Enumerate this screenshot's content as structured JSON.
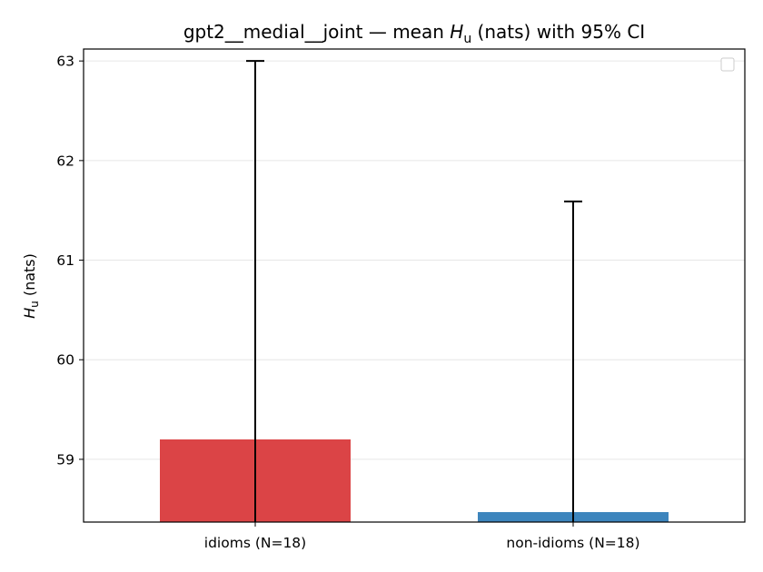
{
  "chart_data": {
    "type": "bar",
    "title_prefix": "gpt2__medial__joint — mean ",
    "title_symbol": "H",
    "title_subscript": "u",
    "title_suffix": " (nats) with 95% CI",
    "ylabel_symbol": "H",
    "ylabel_subscript": "u",
    "ylabel_suffix": " (nats)",
    "categories": [
      "idioms (N=18)",
      "non-idioms (N=18)"
    ],
    "values": [
      59.2,
      58.47
    ],
    "ci_upper": [
      63.0,
      61.59
    ],
    "bar_colors": [
      "#db4446",
      "#3d85bd"
    ],
    "ylim": [
      58.37,
      63.12
    ],
    "yticks": [
      59,
      60,
      61,
      62,
      63
    ],
    "grid": true,
    "legend": "top-right (empty)"
  }
}
